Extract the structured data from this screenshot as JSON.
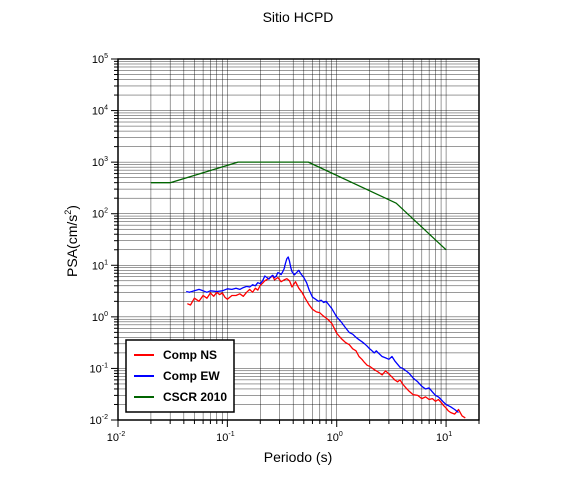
{
  "chart_data": {
    "type": "line",
    "title": "Sitio HCPD",
    "xlabel": "Periodo (s)",
    "ylabel_main": "PSA(cm/s",
    "ylabel_sup": "2",
    "ylabel_tail": ")",
    "xscale": "log",
    "yscale": "log",
    "xlim": [
      0.01,
      20
    ],
    "ylim": [
      0.01,
      100000
    ],
    "grid": true,
    "legend_position": "bottom-left",
    "x_ticks": [
      {
        "value": 0.01,
        "base": "10",
        "exp": "-2"
      },
      {
        "value": 0.1,
        "base": "10",
        "exp": "-1"
      },
      {
        "value": 1,
        "base": "10",
        "exp": "0"
      },
      {
        "value": 10,
        "base": "10",
        "exp": "1"
      }
    ],
    "y_ticks": [
      {
        "value": 0.01,
        "base": "10",
        "exp": "-2"
      },
      {
        "value": 0.1,
        "base": "10",
        "exp": "-1"
      },
      {
        "value": 1,
        "base": "10",
        "exp": "0"
      },
      {
        "value": 10,
        "base": "10",
        "exp": "1"
      },
      {
        "value": 100,
        "base": "10",
        "exp": "2"
      },
      {
        "value": 1000,
        "base": "10",
        "exp": "3"
      },
      {
        "value": 10000,
        "base": "10",
        "exp": "4"
      },
      {
        "value": 100000,
        "base": "10",
        "exp": "5"
      }
    ],
    "series": [
      {
        "name": "Comp NS",
        "color": "#ff0000",
        "points": [
          [
            0.043,
            1.8
          ],
          [
            0.046,
            1.7
          ],
          [
            0.05,
            2.3
          ],
          [
            0.055,
            2.0
          ],
          [
            0.06,
            2.6
          ],
          [
            0.065,
            2.3
          ],
          [
            0.07,
            2.9
          ],
          [
            0.075,
            2.5
          ],
          [
            0.08,
            3.0
          ],
          [
            0.085,
            2.7
          ],
          [
            0.09,
            2.9
          ],
          [
            0.095,
            2.4
          ],
          [
            0.1,
            2.2
          ],
          [
            0.11,
            2.6
          ],
          [
            0.12,
            2.6
          ],
          [
            0.13,
            2.8
          ],
          [
            0.14,
            2.5
          ],
          [
            0.15,
            3.0
          ],
          [
            0.16,
            3.4
          ],
          [
            0.17,
            3.0
          ],
          [
            0.18,
            3.6
          ],
          [
            0.19,
            3.3
          ],
          [
            0.2,
            4.1
          ],
          [
            0.21,
            4.5
          ],
          [
            0.22,
            5.0
          ],
          [
            0.24,
            5.6
          ],
          [
            0.26,
            6.2
          ],
          [
            0.27,
            5.2
          ],
          [
            0.29,
            5.8
          ],
          [
            0.31,
            4.8
          ],
          [
            0.33,
            5.2
          ],
          [
            0.35,
            5.5
          ],
          [
            0.37,
            5.0
          ],
          [
            0.39,
            3.8
          ],
          [
            0.42,
            4.8
          ],
          [
            0.45,
            3.6
          ],
          [
            0.48,
            3.0
          ],
          [
            0.52,
            2.2
          ],
          [
            0.56,
            1.7
          ],
          [
            0.6,
            1.4
          ],
          [
            0.65,
            1.25
          ],
          [
            0.7,
            1.2
          ],
          [
            0.75,
            1.05
          ],
          [
            0.8,
            0.95
          ],
          [
            0.85,
            0.85
          ],
          [
            0.9,
            0.75
          ],
          [
            0.95,
            0.6
          ],
          [
            1.0,
            0.48
          ],
          [
            1.1,
            0.38
          ],
          [
            1.2,
            0.32
          ],
          [
            1.3,
            0.29
          ],
          [
            1.4,
            0.24
          ],
          [
            1.5,
            0.22
          ],
          [
            1.6,
            0.17
          ],
          [
            1.7,
            0.15
          ],
          [
            1.8,
            0.13
          ],
          [
            1.9,
            0.115
          ],
          [
            2.0,
            0.11
          ],
          [
            2.2,
            0.095
          ],
          [
            2.4,
            0.085
          ],
          [
            2.6,
            0.075
          ],
          [
            2.8,
            0.09
          ],
          [
            3.0,
            0.078
          ],
          [
            3.2,
            0.068
          ],
          [
            3.4,
            0.06
          ],
          [
            3.6,
            0.055
          ],
          [
            3.8,
            0.06
          ],
          [
            4.0,
            0.05
          ],
          [
            4.3,
            0.042
          ],
          [
            4.6,
            0.036
          ],
          [
            5.0,
            0.031
          ],
          [
            5.5,
            0.03
          ],
          [
            6.0,
            0.026
          ],
          [
            6.5,
            0.028
          ],
          [
            7.0,
            0.025
          ],
          [
            7.5,
            0.026
          ],
          [
            8.0,
            0.023
          ],
          [
            8.5,
            0.025
          ],
          [
            9.0,
            0.022
          ],
          [
            9.5,
            0.019
          ],
          [
            10.0,
            0.017
          ],
          [
            10.5,
            0.015
          ],
          [
            11.0,
            0.014
          ],
          [
            12.0,
            0.013
          ],
          [
            13.0,
            0.016
          ],
          [
            14.0,
            0.012
          ],
          [
            15.0,
            0.011
          ]
        ]
      },
      {
        "name": "Comp EW",
        "color": "#0000ff",
        "points": [
          [
            0.042,
            3.1
          ],
          [
            0.045,
            3.0
          ],
          [
            0.05,
            3.2
          ],
          [
            0.055,
            3.4
          ],
          [
            0.06,
            3.2
          ],
          [
            0.065,
            3.0
          ],
          [
            0.07,
            3.2
          ],
          [
            0.08,
            3.1
          ],
          [
            0.09,
            3.2
          ],
          [
            0.1,
            3.5
          ],
          [
            0.11,
            3.4
          ],
          [
            0.12,
            3.6
          ],
          [
            0.13,
            3.4
          ],
          [
            0.14,
            3.7
          ],
          [
            0.15,
            3.9
          ],
          [
            0.16,
            3.8
          ],
          [
            0.17,
            4.2
          ],
          [
            0.18,
            4.0
          ],
          [
            0.19,
            4.6
          ],
          [
            0.2,
            4.4
          ],
          [
            0.21,
            5.0
          ],
          [
            0.22,
            6.2
          ],
          [
            0.23,
            5.8
          ],
          [
            0.24,
            5.4
          ],
          [
            0.25,
            6.0
          ],
          [
            0.26,
            6.4
          ],
          [
            0.27,
            5.8
          ],
          [
            0.28,
            6.2
          ],
          [
            0.29,
            7.2
          ],
          [
            0.3,
            7.0
          ],
          [
            0.31,
            6.6
          ],
          [
            0.32,
            7.4
          ],
          [
            0.33,
            8.5
          ],
          [
            0.34,
            11.0
          ],
          [
            0.35,
            13.5
          ],
          [
            0.36,
            14.5
          ],
          [
            0.37,
            12.0
          ],
          [
            0.38,
            9.0
          ],
          [
            0.39,
            7.5
          ],
          [
            0.41,
            6.5
          ],
          [
            0.43,
            7.2
          ],
          [
            0.45,
            8.0
          ],
          [
            0.47,
            6.8
          ],
          [
            0.5,
            5.8
          ],
          [
            0.53,
            4.6
          ],
          [
            0.56,
            3.3
          ],
          [
            0.6,
            2.4
          ],
          [
            0.64,
            2.2
          ],
          [
            0.68,
            2.0
          ],
          [
            0.72,
            2.1
          ],
          [
            0.76,
            1.9
          ],
          [
            0.8,
            2.0
          ],
          [
            0.85,
            1.7
          ],
          [
            0.9,
            1.45
          ],
          [
            0.95,
            1.2
          ],
          [
            1.0,
            1.0
          ],
          [
            1.1,
            0.8
          ],
          [
            1.2,
            0.62
          ],
          [
            1.3,
            0.5
          ],
          [
            1.4,
            0.46
          ],
          [
            1.5,
            0.4
          ],
          [
            1.6,
            0.36
          ],
          [
            1.7,
            0.33
          ],
          [
            1.8,
            0.3
          ],
          [
            1.9,
            0.27
          ],
          [
            2.0,
            0.24
          ],
          [
            2.1,
            0.22
          ],
          [
            2.2,
            0.2
          ],
          [
            2.3,
            0.22
          ],
          [
            2.4,
            0.2
          ],
          [
            2.6,
            0.17
          ],
          [
            2.8,
            0.16
          ],
          [
            3.0,
            0.15
          ],
          [
            3.2,
            0.17
          ],
          [
            3.4,
            0.14
          ],
          [
            3.6,
            0.12
          ],
          [
            3.8,
            0.105
          ],
          [
            4.0,
            0.1
          ],
          [
            4.3,
            0.09
          ],
          [
            4.6,
            0.08
          ],
          [
            5.0,
            0.065
          ],
          [
            5.5,
            0.055
          ],
          [
            6.0,
            0.045
          ],
          [
            6.5,
            0.04
          ],
          [
            7.0,
            0.042
          ],
          [
            7.5,
            0.035
          ],
          [
            8.0,
            0.03
          ],
          [
            8.5,
            0.028
          ],
          [
            9.0,
            0.025
          ],
          [
            9.5,
            0.022
          ],
          [
            10.0,
            0.02
          ],
          [
            11.0,
            0.018
          ],
          [
            12.0,
            0.016
          ],
          [
            13.0,
            0.014
          ]
        ]
      },
      {
        "name": "CSCR 2010",
        "color": "#006400",
        "points": [
          [
            0.02,
            400
          ],
          [
            0.03,
            400
          ],
          [
            0.125,
            1000
          ],
          [
            0.55,
            1000
          ],
          [
            3.5,
            160
          ],
          [
            10.0,
            20
          ]
        ]
      }
    ]
  }
}
